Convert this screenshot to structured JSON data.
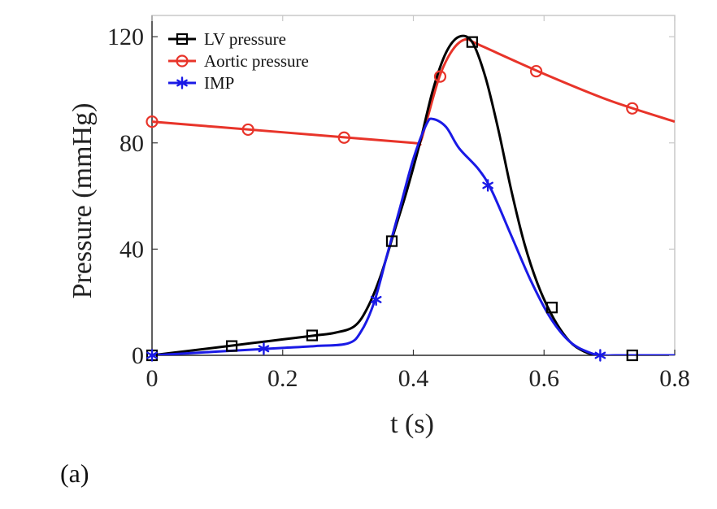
{
  "panel_label": "(a)",
  "chart_data": {
    "type": "line",
    "title": "",
    "xlabel": "t (s)",
    "ylabel": "Pressure (mmHg)",
    "xlim": [
      0,
      0.8
    ],
    "ylim": [
      0,
      128
    ],
    "x_ticks": [
      0,
      0.2,
      0.4,
      0.6,
      0.8
    ],
    "x_tick_labels": [
      "0",
      "0.2",
      "0.4",
      "0.6",
      "0.8"
    ],
    "y_ticks": [
      0,
      40,
      80,
      120
    ],
    "y_tick_labels": [
      "0",
      "40",
      "80",
      "120"
    ],
    "grid": false,
    "legend_position": "top-left",
    "series": [
      {
        "name": "LV pressure",
        "color": "#000000",
        "marker": "square",
        "x": [
          0,
          0.05,
          0.1,
          0.15,
          0.2,
          0.25,
          0.28,
          0.31,
          0.33,
          0.35,
          0.37,
          0.39,
          0.41,
          0.43,
          0.45,
          0.47,
          0.49,
          0.51,
          0.53,
          0.55,
          0.57,
          0.59,
          0.61,
          0.63,
          0.65,
          0.68,
          0.72,
          0.8
        ],
        "y": [
          0,
          1.5,
          3,
          4.5,
          6,
          7.5,
          8.5,
          11,
          18,
          30,
          46,
          62,
          80,
          100,
          114,
          120,
          118,
          105,
          85,
          62,
          42,
          27,
          16,
          8,
          3,
          0,
          0,
          0
        ],
        "marker_x": [
          0,
          0.122,
          0.245,
          0.367,
          0.49,
          0.612,
          0.735
        ],
        "marker_y": [
          0,
          3.5,
          7.5,
          43,
          118,
          18,
          0
        ]
      },
      {
        "name": "Aortic pressure",
        "color": "#e8342a",
        "marker": "circle",
        "x": [
          0,
          0.1,
          0.2,
          0.3,
          0.4,
          0.41,
          0.42,
          0.44,
          0.46,
          0.48,
          0.5,
          0.6,
          0.7,
          0.8
        ],
        "y": [
          88,
          86,
          84,
          82,
          80,
          80,
          88,
          105,
          115,
          119,
          117,
          106,
          96,
          88
        ],
        "marker_x": [
          0,
          0.147,
          0.294,
          0.441,
          0.588,
          0.735
        ],
        "marker_y": [
          88,
          85,
          82,
          105,
          107,
          93
        ]
      },
      {
        "name": "IMP",
        "color": "#1a1ae6",
        "marker": "asterisk",
        "x": [
          0,
          0.05,
          0.1,
          0.15,
          0.2,
          0.25,
          0.3,
          0.32,
          0.34,
          0.36,
          0.38,
          0.4,
          0.42,
          0.43,
          0.45,
          0.47,
          0.5,
          0.52,
          0.55,
          0.58,
          0.61,
          0.64,
          0.67,
          0.69,
          0.72,
          0.8
        ],
        "y": [
          0,
          0.7,
          1.4,
          2.1,
          2.8,
          3.5,
          4.5,
          9,
          20,
          38,
          56,
          74,
          87,
          89,
          86,
          78,
          70,
          62,
          45,
          28,
          14,
          5,
          1,
          0,
          0,
          0
        ],
        "marker_x": [
          0,
          0.171,
          0.343,
          0.514,
          0.686
        ],
        "marker_y": [
          0,
          2.5,
          21,
          64,
          0
        ]
      }
    ]
  }
}
